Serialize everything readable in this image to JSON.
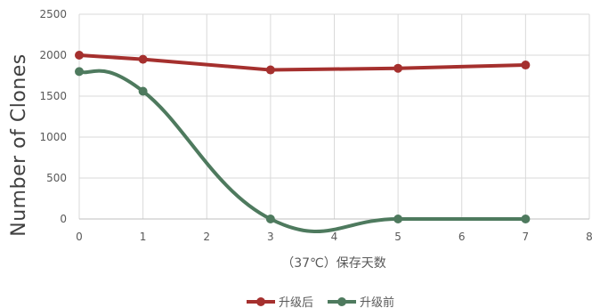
{
  "chart_data": {
    "type": "line",
    "title": "",
    "xlabel": "（37℃）保存天数",
    "ylabel": "Number of Clones",
    "xlim": [
      0,
      8
    ],
    "ylim": [
      0,
      2500
    ],
    "x_ticks": [
      "0",
      "1",
      "2",
      "3",
      "4",
      "5",
      "6",
      "7",
      "8"
    ],
    "y_ticks": [
      "0",
      "500",
      "1000",
      "1500",
      "2000",
      "2500"
    ],
    "grid": true,
    "legend_position": "bottom-center",
    "series": [
      {
        "name": "升级后",
        "color": "#a5302e",
        "smooth": false,
        "x": [
          0,
          1,
          3,
          5,
          7
        ],
        "y": [
          2000,
          1950,
          1820,
          1840,
          1880
        ]
      },
      {
        "name": "升级前",
        "color": "#4e7a5e",
        "smooth": true,
        "x": [
          0,
          1,
          3,
          5,
          7
        ],
        "y": [
          1800,
          1560,
          0,
          0,
          0
        ]
      }
    ]
  }
}
